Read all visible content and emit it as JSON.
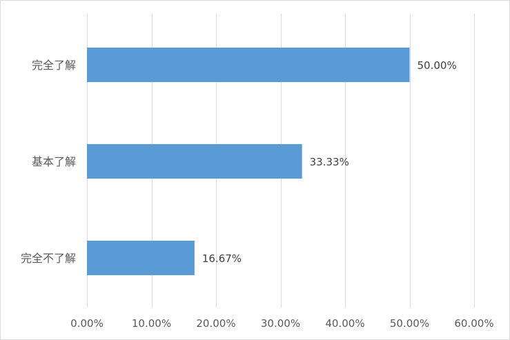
{
  "chart_data": {
    "type": "bar",
    "orientation": "horizontal",
    "categories": [
      "完全了解",
      "基本了解",
      "完全不了解"
    ],
    "values": [
      50.0,
      33.33,
      16.67
    ],
    "data_labels": [
      "50.00%",
      "33.33%",
      "16.67%"
    ],
    "xlim": [
      0,
      60
    ],
    "x_ticks": [
      0,
      10,
      20,
      30,
      40,
      50,
      60
    ],
    "x_tick_labels": [
      "0.00%",
      "10.00%",
      "20.00%",
      "30.00%",
      "40.00%",
      "50.00%",
      "60.00%"
    ],
    "title": "",
    "xlabel": "",
    "ylabel": "",
    "grid": "vertical",
    "legend": "none",
    "bar_color": "#5b9bd5",
    "grid_color": "#d9d9d9"
  }
}
